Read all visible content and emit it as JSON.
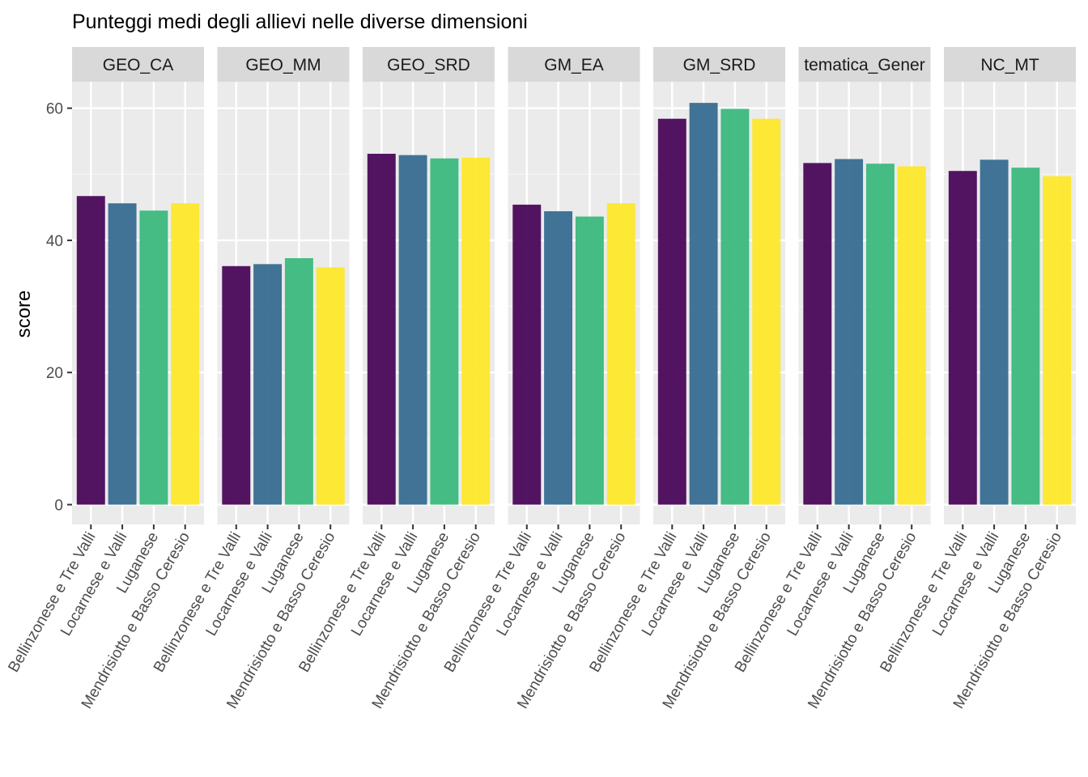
{
  "chart_data": {
    "type": "bar",
    "title": "Punteggi medi degli allievi nelle diverse dimensioni",
    "xlabel": "",
    "ylabel": "score",
    "ylim": [
      -3,
      64
    ],
    "yticks": [
      0,
      20,
      40,
      60
    ],
    "grid": true,
    "legend": "none",
    "categories": [
      "Bellinzonese e Tre Valli",
      "Locarnese e Valli",
      "Luganese",
      "Mendrisiotto e Basso Ceresio"
    ],
    "colors": [
      "#440154",
      "#31688E",
      "#35B779",
      "#FDE725"
    ],
    "facets": [
      {
        "label": "GEO_CA",
        "values": [
          46.7,
          45.6,
          44.5,
          45.6
        ]
      },
      {
        "label": "GEO_MM",
        "values": [
          36.1,
          36.4,
          37.3,
          35.9
        ]
      },
      {
        "label": "GEO_SRD",
        "values": [
          53.1,
          52.9,
          52.4,
          52.5
        ]
      },
      {
        "label": "GM_EA",
        "values": [
          45.4,
          44.4,
          43.6,
          45.6
        ]
      },
      {
        "label": "GM_SRD",
        "values": [
          58.4,
          60.8,
          59.9,
          58.4
        ]
      },
      {
        "label": "tematica_Gener",
        "values": [
          51.7,
          52.3,
          51.6,
          51.2
        ]
      },
      {
        "label": "NC_MT",
        "values": [
          50.5,
          52.2,
          51.0,
          49.7
        ]
      }
    ]
  }
}
